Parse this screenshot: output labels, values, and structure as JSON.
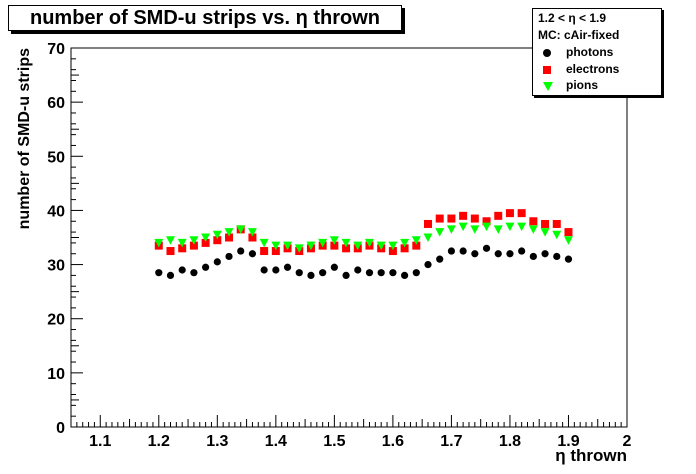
{
  "title": "number of SMD-u strips vs. η thrown",
  "legend": {
    "header1": "1.2 < η < 1.9",
    "header2": "MC: cAir-fixed",
    "entries": [
      {
        "label": "photons",
        "color": "#000000",
        "marker": "circle"
      },
      {
        "label": "electrons",
        "color": "#ff0000",
        "marker": "square"
      },
      {
        "label": "pions",
        "color": "#00ff00",
        "marker": "triangle-down"
      }
    ]
  },
  "chart_data": {
    "type": "scatter",
    "title": "number of SMD-u strips vs. η thrown",
    "xlabel": "η thrown",
    "ylabel": "number of SMD-u strips",
    "xlim": [
      1.05,
      2.0
    ],
    "ylim": [
      0,
      70
    ],
    "x_ticks": [
      "1.1",
      "1.2",
      "1.3",
      "1.4",
      "1.5",
      "1.6",
      "1.7",
      "1.8",
      "1.9",
      "2"
    ],
    "y_ticks": [
      "0",
      "10",
      "20",
      "30",
      "40",
      "50",
      "60",
      "70"
    ],
    "grid": false,
    "legend_position": "top-right",
    "series": [
      {
        "name": "photons",
        "color": "#000000",
        "marker": "circle",
        "x": [
          1.2,
          1.22,
          1.24,
          1.26,
          1.28,
          1.3,
          1.32,
          1.34,
          1.36,
          1.38,
          1.4,
          1.42,
          1.44,
          1.46,
          1.48,
          1.5,
          1.52,
          1.54,
          1.56,
          1.58,
          1.6,
          1.62,
          1.64,
          1.66,
          1.68,
          1.7,
          1.72,
          1.74,
          1.76,
          1.78,
          1.8,
          1.82,
          1.84,
          1.86,
          1.88,
          1.9
        ],
        "y": [
          28.5,
          28.0,
          29.0,
          28.5,
          29.5,
          30.5,
          31.5,
          32.5,
          32.0,
          29.0,
          29.0,
          29.5,
          28.5,
          28.0,
          28.5,
          29.5,
          28.0,
          29.0,
          28.5,
          28.5,
          28.5,
          28.0,
          28.5,
          30.0,
          31.0,
          32.5,
          32.5,
          32.0,
          33.0,
          32.0,
          32.0,
          32.5,
          31.5,
          32.0,
          31.5,
          31.0
        ]
      },
      {
        "name": "electrons",
        "color": "#ff0000",
        "marker": "square",
        "x": [
          1.2,
          1.22,
          1.24,
          1.26,
          1.28,
          1.3,
          1.32,
          1.34,
          1.36,
          1.38,
          1.4,
          1.42,
          1.44,
          1.46,
          1.48,
          1.5,
          1.52,
          1.54,
          1.56,
          1.58,
          1.6,
          1.62,
          1.64,
          1.66,
          1.68,
          1.7,
          1.72,
          1.74,
          1.76,
          1.78,
          1.8,
          1.82,
          1.84,
          1.86,
          1.88,
          1.9
        ],
        "y": [
          33.5,
          32.5,
          33.0,
          33.5,
          34.0,
          34.5,
          35.0,
          36.5,
          35.0,
          32.5,
          32.5,
          33.0,
          32.5,
          33.0,
          33.5,
          33.5,
          33.0,
          33.0,
          33.5,
          33.0,
          32.5,
          33.0,
          33.5,
          37.5,
          38.5,
          38.5,
          39.0,
          38.5,
          38.0,
          39.0,
          39.5,
          39.5,
          38.0,
          37.5,
          37.5,
          36.0
        ]
      },
      {
        "name": "pions",
        "color": "#00ff00",
        "marker": "triangle-down",
        "x": [
          1.2,
          1.22,
          1.24,
          1.26,
          1.28,
          1.3,
          1.32,
          1.34,
          1.36,
          1.38,
          1.4,
          1.42,
          1.44,
          1.46,
          1.48,
          1.5,
          1.52,
          1.54,
          1.56,
          1.58,
          1.6,
          1.62,
          1.64,
          1.66,
          1.68,
          1.7,
          1.72,
          1.74,
          1.76,
          1.78,
          1.8,
          1.82,
          1.84,
          1.86,
          1.88,
          1.9
        ],
        "y": [
          34.0,
          34.5,
          34.0,
          34.5,
          35.0,
          35.5,
          36.0,
          36.5,
          36.0,
          34.0,
          33.5,
          33.5,
          33.0,
          33.5,
          34.0,
          34.5,
          34.0,
          33.5,
          34.0,
          33.5,
          33.5,
          34.0,
          34.5,
          35.0,
          36.0,
          36.5,
          37.0,
          36.5,
          37.0,
          36.5,
          37.0,
          37.0,
          36.5,
          36.0,
          35.5,
          34.5
        ]
      }
    ]
  }
}
